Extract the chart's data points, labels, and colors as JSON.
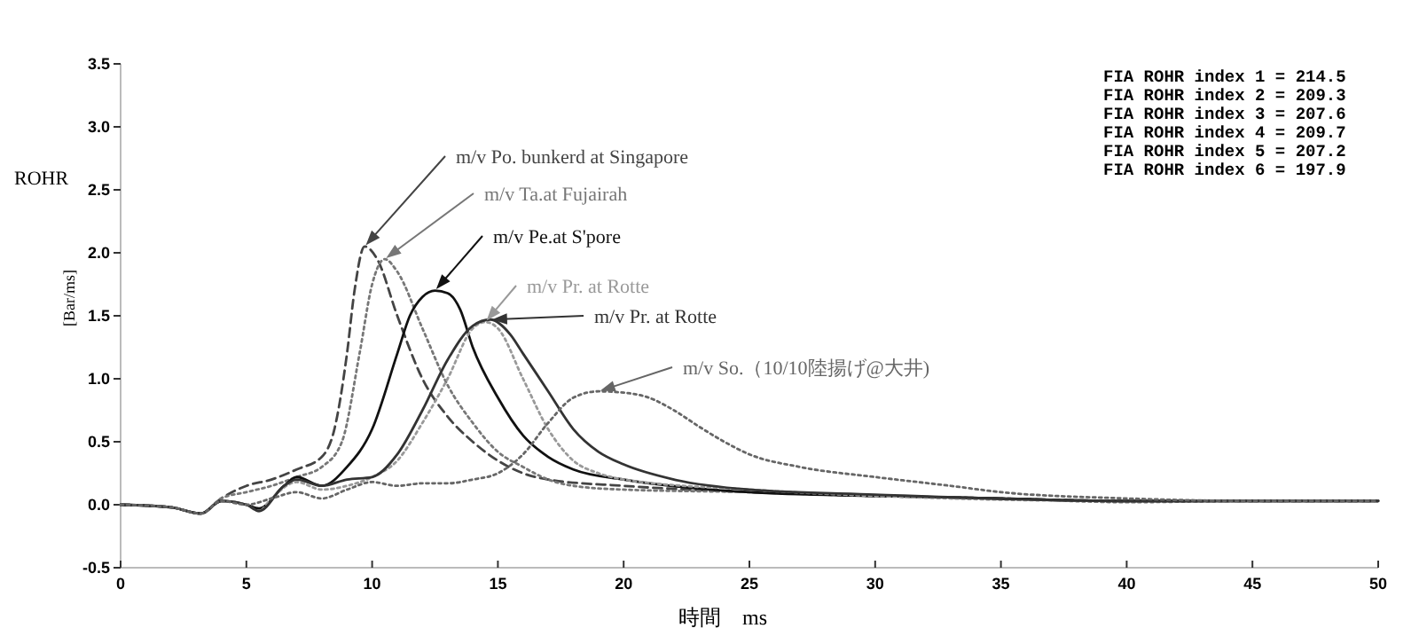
{
  "chart_data": {
    "type": "line",
    "xlabel": "時間　ms",
    "ylabel": "[Bar/ms]",
    "xlim": [
      0,
      50
    ],
    "xticks": [
      0,
      5,
      10,
      15,
      20,
      25,
      30,
      35,
      40,
      45,
      50
    ],
    "ylim": [
      -0.5,
      3.5
    ],
    "yticks": [
      {
        "value": -0.5,
        "label": "-0.5"
      },
      {
        "value": 0,
        "label": "0.0"
      },
      0.5,
      {
        "value": 1,
        "label": "1.0"
      },
      1.5,
      {
        "value": 2,
        "label": "2.0"
      },
      2.5,
      {
        "value": 3,
        "label": "3.0"
      },
      3.5
    ],
    "grid": false,
    "legend": "bottom left",
    "marker": "none",
    "annotations": [
      "ROHR",
      "FIA ROHR index 1 = 214.5",
      "FIA ROHR index 2 = 209.3",
      "FIA ROHR index 3 = 207.6",
      "FIA ROHR index 4 = 209.7",
      "FIA ROHR index 5 = 207.2",
      "FIA ROHR index 6 = 197.9"
    ],
    "series": [
      {
        "name": "m/v Po. bunkerd at Singapore",
        "color": "#444444",
        "line_style": "dashed",
        "x": [
          0,
          2,
          3.2,
          4,
          5,
          6,
          7,
          8,
          8.5,
          9,
          9.3,
          9.7,
          10.2,
          11,
          12,
          13,
          14,
          15,
          16,
          17,
          20,
          25,
          30,
          35,
          40,
          45,
          50
        ],
        "values": [
          0,
          -0.02,
          -0.07,
          0.05,
          0.15,
          0.2,
          0.28,
          0.38,
          0.6,
          1.2,
          1.7,
          2.05,
          1.95,
          1.5,
          1.0,
          0.7,
          0.5,
          0.35,
          0.25,
          0.2,
          0.15,
          0.1,
          0.07,
          0.05,
          0.03,
          0.03,
          0.03
        ]
      },
      {
        "name": "m/v Ta.at Fujairah",
        "color": "#777777",
        "line_style": "dotted",
        "x": [
          0,
          2,
          3.2,
          4,
          5,
          6,
          7,
          8,
          8.8,
          9.5,
          10,
          10.5,
          11,
          12,
          13,
          14,
          15,
          16,
          17,
          18,
          20,
          25,
          30,
          35,
          40,
          45,
          50
        ],
        "values": [
          0,
          -0.02,
          -0.07,
          0.05,
          0.1,
          0.15,
          0.22,
          0.3,
          0.5,
          1.2,
          1.75,
          1.95,
          1.85,
          1.4,
          0.95,
          0.65,
          0.42,
          0.3,
          0.2,
          0.15,
          0.12,
          0.1,
          0.07,
          0.05,
          0.02,
          0.03,
          0.03
        ]
      },
      {
        "name": "m/v Pe.at S'pore",
        "color": "#111111",
        "line_style": "solid",
        "x": [
          0,
          2,
          3.2,
          4,
          5,
          5.5,
          6.5,
          7,
          8,
          9,
          10,
          11,
          11.5,
          12,
          12.5,
          13,
          13.5,
          14,
          15,
          16,
          17,
          18,
          20,
          25,
          30,
          35,
          40,
          50
        ],
        "values": [
          0,
          -0.02,
          -0.07,
          0.03,
          0,
          -0.03,
          0.15,
          0.22,
          0.15,
          0.3,
          0.6,
          1.2,
          1.5,
          1.65,
          1.7,
          1.68,
          1.55,
          1.25,
          0.85,
          0.55,
          0.38,
          0.28,
          0.2,
          0.1,
          0.07,
          0.05,
          0.03,
          0.03
        ]
      },
      {
        "name": "m/v Pr. at Rotte",
        "color": "#999999",
        "line_style": "dotted",
        "x": [
          0,
          2,
          3.2,
          4,
          5,
          5.5,
          6,
          7,
          8,
          9,
          10,
          11,
          12,
          13,
          14,
          14.5,
          15,
          16,
          17,
          18,
          19,
          20,
          25,
          30,
          40,
          50
        ],
        "values": [
          0,
          -0.02,
          -0.07,
          0.03,
          0,
          -0.05,
          0.05,
          0.18,
          0.12,
          0.15,
          0.22,
          0.35,
          0.65,
          1.0,
          1.4,
          1.45,
          1.4,
          1.0,
          0.6,
          0.35,
          0.25,
          0.2,
          0.12,
          0.07,
          0.03,
          0.03
        ]
      },
      {
        "name": "m/v Pr. at Rotte",
        "color": "#333333",
        "line_style": "solid",
        "x": [
          0,
          2,
          3.2,
          4,
          5,
          5.5,
          6.5,
          7,
          8,
          9,
          10,
          11,
          12,
          13,
          14,
          14.7,
          15.5,
          16,
          17,
          18,
          19,
          20,
          22,
          25,
          30,
          40,
          50
        ],
        "values": [
          0,
          -0.02,
          -0.07,
          0.03,
          0,
          -0.05,
          0.15,
          0.2,
          0.15,
          0.2,
          0.22,
          0.4,
          0.75,
          1.15,
          1.42,
          1.47,
          1.35,
          1.2,
          0.9,
          0.6,
          0.42,
          0.32,
          0.2,
          0.12,
          0.08,
          0.03,
          0.03
        ]
      },
      {
        "name": "m/v So.（10/10陸揚げ@大井)",
        "color": "#666666",
        "line_style": "dotted",
        "x": [
          0,
          2,
          3.2,
          4,
          5,
          6,
          7,
          8,
          9,
          10,
          11,
          12,
          13,
          14,
          15,
          16,
          17,
          18,
          19,
          20,
          21,
          22,
          23,
          24,
          25,
          27,
          30,
          33,
          35,
          40,
          45,
          50
        ],
        "values": [
          0,
          -0.02,
          -0.07,
          0.03,
          0,
          0.05,
          0.1,
          0.05,
          0.12,
          0.18,
          0.15,
          0.17,
          0.17,
          0.2,
          0.25,
          0.4,
          0.65,
          0.85,
          0.9,
          0.89,
          0.85,
          0.75,
          0.62,
          0.5,
          0.4,
          0.3,
          0.22,
          0.15,
          0.1,
          0.05,
          0.03,
          0.03
        ]
      }
    ]
  }
}
